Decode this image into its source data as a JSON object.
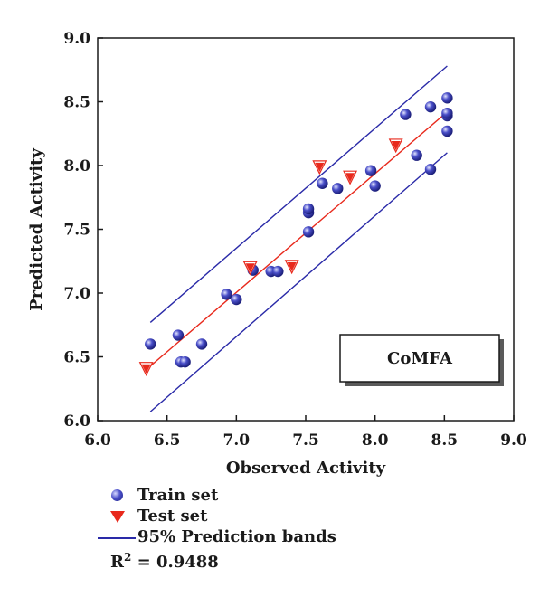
{
  "chart_data": {
    "type": "scatter",
    "xlabel": "Observed Activity",
    "ylabel": "Predicted Activity",
    "xlim": [
      6.0,
      9.0
    ],
    "ylim": [
      6.0,
      9.0
    ],
    "xticks": [
      "6.0",
      "6.5",
      "7.0",
      "7.5",
      "8.0",
      "8.5",
      "9.0"
    ],
    "yticks": [
      "6.0",
      "6.5",
      "7.0",
      "7.5",
      "8.0",
      "8.5",
      "9.0"
    ],
    "grid": false,
    "series": [
      {
        "name": "Train set",
        "marker": "sphere",
        "color": "#3b3fb5",
        "points": [
          [
            6.38,
            6.6
          ],
          [
            6.58,
            6.67
          ],
          [
            6.6,
            6.46
          ],
          [
            6.63,
            6.46
          ],
          [
            6.75,
            6.6
          ],
          [
            6.93,
            6.99
          ],
          [
            7.0,
            6.95
          ],
          [
            7.12,
            7.18
          ],
          [
            7.25,
            7.17
          ],
          [
            7.3,
            7.17
          ],
          [
            7.52,
            7.48
          ],
          [
            7.52,
            7.63
          ],
          [
            7.52,
            7.66
          ],
          [
            7.62,
            7.86
          ],
          [
            7.73,
            7.82
          ],
          [
            7.97,
            7.96
          ],
          [
            8.0,
            7.84
          ],
          [
            8.22,
            8.4
          ],
          [
            8.3,
            8.08
          ],
          [
            8.4,
            8.46
          ],
          [
            8.4,
            7.97
          ],
          [
            8.52,
            8.27
          ],
          [
            8.52,
            8.39
          ],
          [
            8.52,
            8.41
          ],
          [
            8.52,
            8.53
          ]
        ]
      },
      {
        "name": "Test set",
        "marker": "triangle-down",
        "color": "#e8291c",
        "points": [
          [
            6.35,
            6.41
          ],
          [
            7.1,
            7.2
          ],
          [
            7.4,
            7.21
          ],
          [
            7.6,
            7.99
          ],
          [
            7.82,
            7.91
          ],
          [
            8.15,
            8.16
          ]
        ]
      }
    ],
    "fit_line": {
      "color": "#e8291c",
      "points": [
        [
          6.35,
          6.4
        ],
        [
          8.52,
          8.42
        ]
      ]
    },
    "prediction_bands": {
      "name": "95% Prediction bands",
      "color": "#2a2aa8",
      "upper": [
        [
          6.38,
          6.77
        ],
        [
          8.52,
          8.78
        ]
      ],
      "lower": [
        [
          6.38,
          6.07
        ],
        [
          8.52,
          8.1
        ]
      ]
    },
    "annotation": {
      "text": "CoMFA",
      "position": "bottom-right"
    },
    "r2_text": "R",
    "r2_sup": "2",
    "r2_value": " = 0.9488",
    "legend_placement": "bottom"
  },
  "legend": [
    {
      "label": "Train set",
      "symbol": "sphere"
    },
    {
      "label": "Test set",
      "symbol": "triangle-down"
    },
    {
      "label": "95% Prediction bands",
      "symbol": "line"
    }
  ]
}
